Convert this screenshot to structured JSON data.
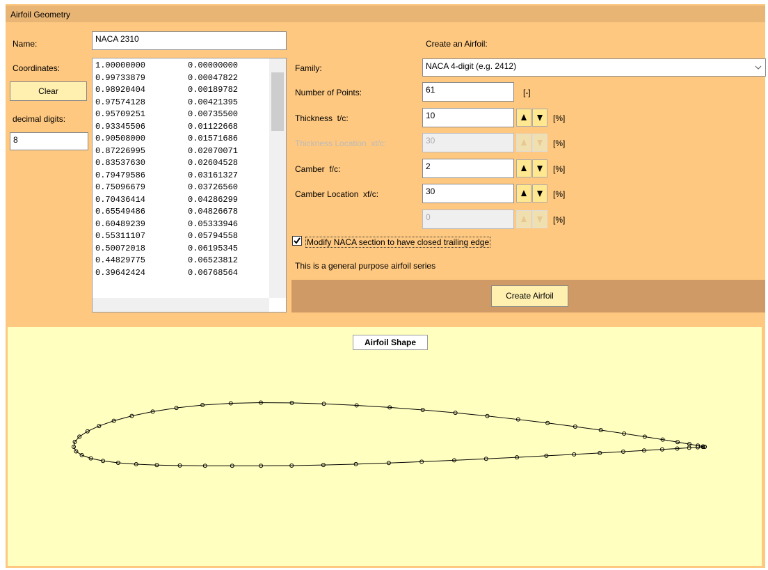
{
  "header": {
    "title": "Airfoil Geometry"
  },
  "left": {
    "name_label": "Name:",
    "name_value": "NACA 2310",
    "coordinates_label": "Coordinates:",
    "clear_button": "Clear",
    "decimal_digits_label": "decimal digits:",
    "decimal_digits_value": "8",
    "coordinates": [
      [
        "1.00000000",
        "0.00000000"
      ],
      [
        "0.99733879",
        "0.00047822"
      ],
      [
        "0.98920404",
        "0.00189782"
      ],
      [
        "0.97574128",
        "0.00421395"
      ],
      [
        "0.95709251",
        "0.00735500"
      ],
      [
        "0.93345506",
        "0.01122668"
      ],
      [
        "0.90508000",
        "0.01571686"
      ],
      [
        "0.87226995",
        "0.02070071"
      ],
      [
        "0.83537630",
        "0.02604528"
      ],
      [
        "0.79479586",
        "0.03161327"
      ],
      [
        "0.75096679",
        "0.03726560"
      ],
      [
        "0.70436414",
        "0.04286299"
      ],
      [
        "0.65549486",
        "0.04826678"
      ],
      [
        "0.60489239",
        "0.05333946"
      ],
      [
        "0.55311107",
        "0.05794558"
      ],
      [
        "0.50072018",
        "0.06195345"
      ],
      [
        "0.44829775",
        "0.06523812"
      ],
      [
        "0.39642424",
        "0.06768564"
      ]
    ]
  },
  "form": {
    "title": "Create an Airfoil:",
    "family_label": "Family:",
    "family_value": "NACA 4-digit (e.g. 2412)",
    "fields": [
      {
        "label": "Number of Points:",
        "value": "61",
        "unit": "[-]"
      },
      {
        "label": "Thickness  t/c:",
        "value": "10",
        "unit": "[%]",
        "spinner": true
      },
      {
        "label": "Thickness Location  xt/c:",
        "value": "30",
        "unit": "[%]",
        "spinner": true,
        "disabled": true
      },
      {
        "label": "Camber  f/c:",
        "value": "2",
        "unit": "[%]",
        "spinner": true
      },
      {
        "label": "Camber Location  xf/c:",
        "value": "30",
        "unit": "[%]",
        "spinner": true
      },
      {
        "value": "0",
        "unit": "[%]",
        "spinner": true,
        "disabled": true
      }
    ],
    "checkbox_label": "Modify NACA section to have closed trailing edge",
    "checkbox_checked": true,
    "description": "This is a general purpose airfoil series",
    "create_button": "Create Airfoil"
  },
  "plot": {
    "title": "Airfoil Shape"
  }
}
